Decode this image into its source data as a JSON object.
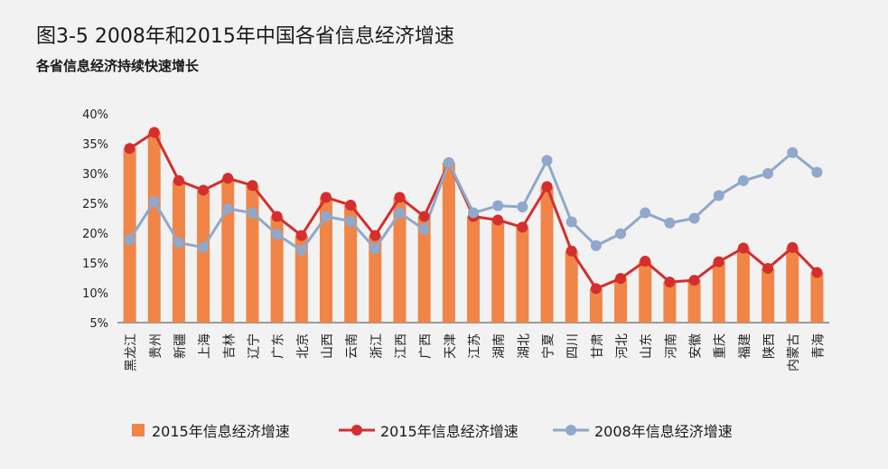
{
  "title": "图3-5  2008年和2015年中国各省信息经济增速",
  "subtitle": "各省信息经济持续快速增长",
  "colors": {
    "bar": "#f08547",
    "line2015": "#d42e2e",
    "line2008": "#8fa8cb",
    "axis": "#444444"
  },
  "chart_data": {
    "type": "bar+line",
    "title": "2008年和2015年中国各省信息经济增速",
    "ylim": [
      5,
      40
    ],
    "y_ticks": [
      "5%",
      "10%",
      "15%",
      "20%",
      "25%",
      "30%",
      "35%",
      "40%"
    ],
    "y_tick_values": [
      5,
      10,
      15,
      20,
      25,
      30,
      35,
      40
    ],
    "categories": [
      "黑龙江",
      "贵州",
      "新疆",
      "上海",
      "吉林",
      "辽宁",
      "广东",
      "北京",
      "山西",
      "云南",
      "浙江",
      "江西",
      "广西",
      "天津",
      "江苏",
      "湖南",
      "湖北",
      "宁夏",
      "四川",
      "甘肃",
      "河北",
      "山东",
      "河南",
      "安徽",
      "重庆",
      "福建",
      "陕西",
      "内蒙古",
      "青海"
    ],
    "series": [
      {
        "name": "2015年信息经济增速",
        "kind": "bar",
        "values": [
          34.2,
          36.9,
          28.8,
          27.2,
          29.2,
          28.0,
          22.8,
          19.6,
          26.0,
          24.7,
          19.6,
          26.0,
          22.8,
          31.8,
          22.8,
          22.2,
          21.0,
          27.8,
          17.0,
          10.7,
          12.4,
          15.3,
          11.8,
          12.1,
          15.2,
          17.5,
          14.1,
          17.6,
          13.4
        ]
      },
      {
        "name": "2015年信息经济增速",
        "kind": "line",
        "values": [
          34.2,
          36.9,
          28.8,
          27.2,
          29.2,
          28.0,
          22.8,
          19.6,
          26.0,
          24.7,
          19.6,
          26.0,
          22.8,
          31.8,
          22.8,
          22.2,
          21.0,
          27.8,
          17.0,
          10.7,
          12.4,
          15.3,
          11.8,
          12.1,
          15.2,
          17.5,
          14.1,
          17.6,
          13.4
        ]
      },
      {
        "name": "2008年信息经济增速",
        "kind": "line",
        "values": [
          18.9,
          25.3,
          18.4,
          17.6,
          24.1,
          23.4,
          19.8,
          17.1,
          22.8,
          22.0,
          17.4,
          23.4,
          20.6,
          31.8,
          23.4,
          24.6,
          24.4,
          32.2,
          21.9,
          17.9,
          19.9,
          23.4,
          21.7,
          22.5,
          26.3,
          28.8,
          30.0,
          33.5,
          30.2
        ]
      }
    ],
    "legend_position": "bottom"
  },
  "legend": [
    {
      "label": "2015年信息经济增速",
      "kind": "bar"
    },
    {
      "label": "2015年信息经济增速",
      "kind": "line2015"
    },
    {
      "label": "2008年信息经济增速",
      "kind": "line2008"
    }
  ]
}
